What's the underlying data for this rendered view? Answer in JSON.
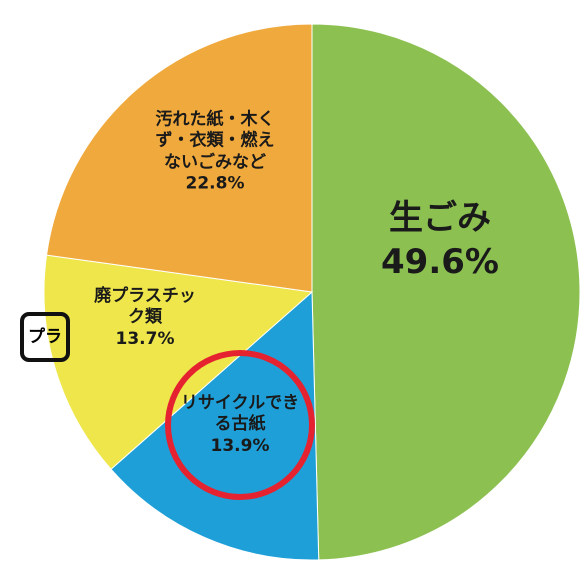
{
  "chart_data": {
    "type": "pie",
    "categories": [
      "生ごみ",
      "リサイクルできる古紙",
      "廃プラスチック類",
      "汚れた紙・木くず・衣類・燃えないごみなど"
    ],
    "values": [
      49.6,
      13.9,
      13.7,
      22.8
    ],
    "value_labels": [
      "49.6%",
      "13.9%",
      "13.7%",
      "22.8%"
    ],
    "colors": [
      "#8cc152",
      "#1e9fd8",
      "#eee64a",
      "#f0a93c"
    ],
    "start_angle": 90,
    "direction": "clockwise",
    "highlight": 1
  },
  "recycle_mark": "プラ"
}
